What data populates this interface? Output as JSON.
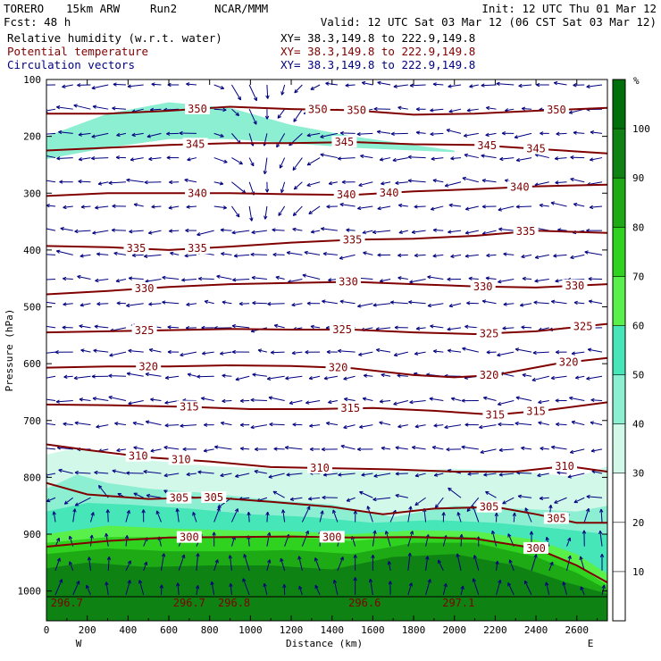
{
  "header": {
    "model": "TORERO",
    "grid": "15km ARW",
    "run": "Run2",
    "org": "NCAR/MMM",
    "init": "Init: 12 UTC Thu 01 Mar 12",
    "fcst": "Fcst:  48 h",
    "valid": "Valid: 12 UTC Sat 03 Mar 12 (06 CST Sat 03 Mar 12)",
    "fields": [
      {
        "name": "Relative humidity (w.r.t. water)",
        "xy": "XY=  38.3,149.8 to 222.9,149.8",
        "color": "#000000"
      },
      {
        "name": "Potential temperature",
        "xy": "XY=  38.3,149.8 to 222.9,149.8",
        "color": "#800000"
      },
      {
        "name": "Circulation vectors",
        "xy": "XY=  38.3,149.8 to 222.9,149.8",
        "color": "#000080"
      }
    ]
  },
  "chart_data": {
    "type": "cross-section",
    "xlabel": "Distance (km)",
    "ylabel": "Pressure (hPa)",
    "xlim": [
      0,
      2750
    ],
    "ylim": [
      1010,
      100
    ],
    "x_ticks": [
      0,
      200,
      400,
      600,
      800,
      1000,
      1200,
      1400,
      1600,
      1800,
      2000,
      2200,
      2400,
      2600
    ],
    "x_tick_labels": [
      "0",
      "200",
      "400",
      "600",
      "800",
      "1000",
      "1200",
      "1400",
      "1600",
      "1800",
      "2000",
      "2200",
      "2400",
      "2600"
    ],
    "y_ticks": [
      100,
      200,
      300,
      400,
      500,
      600,
      700,
      800,
      900,
      1000
    ],
    "y_tick_labels": [
      "100",
      "200",
      "300",
      "400",
      "500",
      "600",
      "700",
      "800",
      "900",
      "1000"
    ],
    "left_end_label": "W",
    "right_end_label": "E",
    "colorbar": {
      "unit": "%",
      "levels": [
        10,
        20,
        30,
        40,
        50,
        60,
        70,
        80,
        90,
        100
      ],
      "labels": [
        "10",
        "20",
        "30",
        "40",
        "50",
        "60",
        "70",
        "80",
        "90",
        "100"
      ],
      "colors": [
        "#ffffff",
        "#ffffff",
        "#ffffff",
        "#d2f8ea",
        "#8cefd2",
        "#46e6b9",
        "#5af04b",
        "#2fd21e",
        "#1eaa14",
        "#0f8214",
        "#006e0a"
      ]
    },
    "isentropes": [
      {
        "value": 300,
        "label": "300",
        "points": [
          [
            0,
            922
          ],
          [
            300,
            912
          ],
          [
            600,
            906
          ],
          [
            900,
            905
          ],
          [
            1200,
            904
          ],
          [
            1500,
            906
          ],
          [
            1800,
            905
          ],
          [
            2100,
            908
          ],
          [
            2400,
            925
          ],
          [
            2600,
            955
          ],
          [
            2750,
            985
          ]
        ],
        "label_at": [
          [
            700,
            905
          ],
          [
            1400,
            903
          ],
          [
            2400,
            930
          ]
        ]
      },
      {
        "value": 305,
        "label": "305",
        "points": [
          [
            0,
            810
          ],
          [
            200,
            830
          ],
          [
            500,
            838
          ],
          [
            800,
            835
          ],
          [
            1100,
            843
          ],
          [
            1400,
            852
          ],
          [
            1650,
            865
          ],
          [
            1900,
            855
          ],
          [
            2200,
            852
          ],
          [
            2400,
            865
          ],
          [
            2600,
            880
          ],
          [
            2750,
            880
          ]
        ],
        "label_at": [
          [
            650,
            838
          ],
          [
            820,
            838
          ],
          [
            2170,
            852
          ],
          [
            2500,
            873
          ]
        ]
      },
      {
        "value": 310,
        "label": "310",
        "points": [
          [
            0,
            742
          ],
          [
            200,
            752
          ],
          [
            500,
            765
          ],
          [
            800,
            772
          ],
          [
            1100,
            782
          ],
          [
            1400,
            784
          ],
          [
            1700,
            786
          ],
          [
            2000,
            790
          ],
          [
            2300,
            790
          ],
          [
            2550,
            780
          ],
          [
            2750,
            790
          ]
        ],
        "label_at": [
          [
            450,
            763
          ],
          [
            660,
            752
          ],
          [
            1340,
            768
          ],
          [
            2540,
            784
          ]
        ]
      },
      {
        "value": 315,
        "label": "315",
        "points": [
          [
            0,
            672
          ],
          [
            300,
            673
          ],
          [
            700,
            676
          ],
          [
            1000,
            680
          ],
          [
            1300,
            680
          ],
          [
            1600,
            678
          ],
          [
            1900,
            683
          ],
          [
            2200,
            690
          ],
          [
            2450,
            682
          ],
          [
            2750,
            668
          ]
        ],
        "label_at": [
          [
            700,
            678
          ],
          [
            1490,
            678
          ],
          [
            2200,
            693
          ],
          [
            2400,
            688
          ]
        ]
      },
      {
        "value": 320,
        "label": "320",
        "points": [
          [
            0,
            607
          ],
          [
            300,
            605
          ],
          [
            600,
            605
          ],
          [
            900,
            603
          ],
          [
            1200,
            604
          ],
          [
            1500,
            608
          ],
          [
            1800,
            620
          ],
          [
            2000,
            624
          ],
          [
            2200,
            620
          ],
          [
            2500,
            600
          ],
          [
            2750,
            590
          ]
        ],
        "label_at": [
          [
            500,
            604
          ],
          [
            1430,
            606
          ],
          [
            2170,
            621
          ],
          [
            2560,
            592
          ]
        ]
      },
      {
        "value": 325,
        "label": "325",
        "points": [
          [
            0,
            545
          ],
          [
            300,
            543
          ],
          [
            600,
            541
          ],
          [
            900,
            539
          ],
          [
            1200,
            540
          ],
          [
            1500,
            540
          ],
          [
            1800,
            545
          ],
          [
            2100,
            548
          ],
          [
            2400,
            543
          ],
          [
            2750,
            530
          ]
        ],
        "label_at": [
          [
            480,
            541
          ],
          [
            1450,
            542
          ],
          [
            2170,
            550
          ],
          [
            2630,
            535
          ]
        ]
      },
      {
        "value": 330,
        "label": "330",
        "points": [
          [
            0,
            478
          ],
          [
            300,
            472
          ],
          [
            600,
            465
          ],
          [
            900,
            460
          ],
          [
            1200,
            458
          ],
          [
            1500,
            456
          ],
          [
            1800,
            460
          ],
          [
            2100,
            464
          ],
          [
            2400,
            466
          ],
          [
            2750,
            460
          ]
        ],
        "label_at": [
          [
            480,
            467
          ],
          [
            1480,
            458
          ],
          [
            2140,
            464
          ],
          [
            2590,
            467
          ]
        ]
      },
      {
        "value": 335,
        "label": "335",
        "points": [
          [
            0,
            393
          ],
          [
            300,
            395
          ],
          [
            600,
            400
          ],
          [
            900,
            394
          ],
          [
            1200,
            387
          ],
          [
            1500,
            382
          ],
          [
            1800,
            380
          ],
          [
            2100,
            375
          ],
          [
            2400,
            366
          ],
          [
            2750,
            370
          ]
        ],
        "label_at": [
          [
            440,
            396
          ],
          [
            740,
            400
          ],
          [
            1500,
            380
          ],
          [
            2350,
            368
          ]
        ]
      },
      {
        "value": 340,
        "label": "340",
        "points": [
          [
            0,
            305
          ],
          [
            300,
            300
          ],
          [
            600,
            300
          ],
          [
            900,
            300
          ],
          [
            1200,
            302
          ],
          [
            1500,
            303
          ],
          [
            1800,
            297
          ],
          [
            2100,
            293
          ],
          [
            2400,
            288
          ],
          [
            2750,
            285
          ]
        ],
        "label_at": [
          [
            740,
            298
          ],
          [
            1470,
            301
          ],
          [
            1680,
            301
          ],
          [
            2320,
            290
          ]
        ]
      },
      {
        "value": 345,
        "label": "345",
        "points": [
          [
            0,
            225
          ],
          [
            300,
            220
          ],
          [
            600,
            215
          ],
          [
            900,
            212
          ],
          [
            1200,
            212
          ],
          [
            1500,
            210
          ],
          [
            1800,
            214
          ],
          [
            2100,
            215
          ],
          [
            2400,
            222
          ],
          [
            2750,
            230
          ]
        ],
        "label_at": [
          [
            730,
            212
          ],
          [
            1460,
            212
          ],
          [
            2160,
            225
          ],
          [
            2400,
            226
          ]
        ]
      },
      {
        "value": 350,
        "label": "350",
        "points": [
          [
            0,
            160
          ],
          [
            300,
            160
          ],
          [
            600,
            155
          ],
          [
            900,
            148
          ],
          [
            1200,
            152
          ],
          [
            1500,
            154
          ],
          [
            1800,
            162
          ],
          [
            2100,
            160
          ],
          [
            2400,
            155
          ],
          [
            2750,
            150
          ]
        ],
        "label_at": [
          [
            740,
            153
          ],
          [
            1330,
            154
          ],
          [
            1520,
            156
          ],
          [
            2500,
            160
          ]
        ]
      }
    ],
    "surface_labels": [
      {
        "x": 100,
        "text": "296.7"
      },
      {
        "x": 700,
        "text": "296.7"
      },
      {
        "x": 920,
        "text": "296.8"
      },
      {
        "x": 1560,
        "text": "296.6"
      },
      {
        "x": 2020,
        "text": "297.1"
      }
    ],
    "rh_regions": [
      {
        "rh": 35,
        "color": "#d2f8ea",
        "top": [
          [
            0,
            760
          ],
          [
            150,
            748
          ],
          [
            300,
            760
          ],
          [
            500,
            770
          ],
          [
            800,
            780
          ],
          [
            1100,
            785
          ],
          [
            1400,
            788
          ],
          [
            1700,
            790
          ],
          [
            2000,
            785
          ],
          [
            2300,
            788
          ],
          [
            2600,
            800
          ],
          [
            2750,
            780
          ]
        ]
      },
      {
        "rh": 45,
        "color": "#8cefd2",
        "top": [
          [
            0,
            820
          ],
          [
            150,
            795
          ],
          [
            300,
            810
          ],
          [
            500,
            820
          ],
          [
            800,
            828
          ],
          [
            1100,
            840
          ],
          [
            1400,
            848
          ],
          [
            1700,
            870
          ],
          [
            2000,
            850
          ],
          [
            2300,
            855
          ],
          [
            2600,
            860
          ],
          [
            2750,
            850
          ]
        ]
      },
      {
        "rh": 55,
        "color": "#46e6b9",
        "top": [
          [
            0,
            860
          ],
          [
            200,
            845
          ],
          [
            400,
            848
          ],
          [
            700,
            855
          ],
          [
            1000,
            865
          ],
          [
            1300,
            870
          ],
          [
            1600,
            880
          ],
          [
            1900,
            875
          ],
          [
            2200,
            880
          ],
          [
            2500,
            890
          ],
          [
            2750,
            900
          ]
        ]
      },
      {
        "rh": 65,
        "color": "#5af04b",
        "top": [
          [
            0,
            900
          ],
          [
            300,
            885
          ],
          [
            600,
            890
          ],
          [
            900,
            893
          ],
          [
            1200,
            895
          ],
          [
            1500,
            900
          ],
          [
            1800,
            893
          ],
          [
            2100,
            895
          ],
          [
            2400,
            910
          ],
          [
            2600,
            935
          ],
          [
            2750,
            970
          ]
        ]
      },
      {
        "rh": 75,
        "color": "#2fd21e",
        "top": [
          [
            0,
            915
          ],
          [
            300,
            905
          ],
          [
            600,
            905
          ],
          [
            900,
            906
          ],
          [
            1200,
            905
          ],
          [
            1500,
            912
          ],
          [
            1800,
            903
          ],
          [
            2100,
            905
          ],
          [
            2400,
            925
          ],
          [
            2600,
            955
          ],
          [
            2750,
            990
          ]
        ]
      },
      {
        "rh": 85,
        "color": "#1eaa14",
        "top": [
          [
            0,
            935
          ],
          [
            300,
            925
          ],
          [
            600,
            930
          ],
          [
            900,
            930
          ],
          [
            1200,
            928
          ],
          [
            1500,
            935
          ],
          [
            1800,
            915
          ],
          [
            2100,
            915
          ],
          [
            2400,
            940
          ],
          [
            2600,
            968
          ],
          [
            2750,
            998
          ]
        ]
      },
      {
        "rh": 95,
        "color": "#0f8214",
        "top": [
          [
            0,
            960
          ],
          [
            200,
            950
          ],
          [
            500,
            958
          ],
          [
            800,
            955
          ],
          [
            1100,
            955
          ],
          [
            1400,
            962
          ],
          [
            1700,
            940
          ],
          [
            2000,
            935
          ],
          [
            2300,
            955
          ],
          [
            2550,
            985
          ],
          [
            2750,
            1005
          ]
        ]
      }
    ],
    "upper_moist_band": {
      "rh": 40,
      "color": "#8cefd2",
      "top": [
        [
          0,
          200
        ],
        [
          300,
          160
        ],
        [
          600,
          140
        ],
        [
          900,
          150
        ],
        [
          1200,
          180
        ],
        [
          1500,
          200
        ],
        [
          1800,
          215
        ],
        [
          2000,
          225
        ]
      ],
      "bottom": [
        [
          0,
          240
        ],
        [
          300,
          220
        ],
        [
          600,
          205
        ],
        [
          900,
          205
        ],
        [
          1200,
          212
        ],
        [
          1500,
          220
        ],
        [
          1800,
          225
        ],
        [
          2000,
          228
        ]
      ]
    },
    "vectors": {
      "color": "#00007f",
      "rows": 22,
      "cols": 32,
      "mean_u": -1.0,
      "mean_w": -0.15
    }
  }
}
